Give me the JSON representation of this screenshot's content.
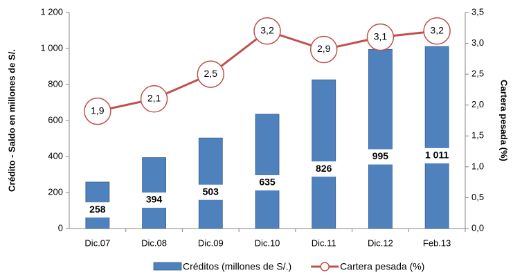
{
  "chart_data": {
    "type": "combo",
    "categories": [
      "Dic.07",
      "Dic.08",
      "Dic.09",
      "Dic.10",
      "Dic.11",
      "Dic.12",
      "Feb.13"
    ],
    "series": [
      {
        "name": "Créditos (millones de S/.)",
        "type": "bar",
        "color": "#4f81bd",
        "values": [
          258,
          394,
          503,
          635,
          826,
          995,
          1011
        ],
        "value_labels": [
          "258",
          "394",
          "503",
          "635",
          "826",
          "995",
          "1 011"
        ]
      },
      {
        "name": "Cartera pesada (%)",
        "type": "line",
        "axis": "y2",
        "color": "#c0504d",
        "values": [
          1.9,
          2.1,
          2.5,
          3.2,
          2.9,
          3.1,
          3.2
        ],
        "value_labels": [
          "1,9",
          "2,1",
          "2,5",
          "3,2",
          "2,9",
          "3,1",
          "3,2"
        ]
      }
    ],
    "y_label": "Crédito - Saldo en millones de S/.",
    "y2_label": "Cartera pesada (%)",
    "ylim": [
      0,
      1200
    ],
    "yticks": [
      0,
      200,
      400,
      600,
      800,
      {
        "value": 1000,
        "label": "1 000"
      },
      {
        "value": 1200,
        "label": "1 200"
      }
    ],
    "y2lim": [
      0,
      3.5
    ],
    "y2ticks": [
      {
        "value": 0,
        "label": "0,0"
      },
      {
        "value": 0.5,
        "label": "0,5"
      },
      {
        "value": 1,
        "label": "1,0"
      },
      {
        "value": 1.5,
        "label": "1,5"
      },
      {
        "value": 2,
        "label": "2,0"
      },
      {
        "value": 2.5,
        "label": "2,5"
      },
      {
        "value": 3,
        "label": "3,0"
      },
      {
        "value": 3.5,
        "label": "3,5"
      }
    ],
    "grid": false
  }
}
